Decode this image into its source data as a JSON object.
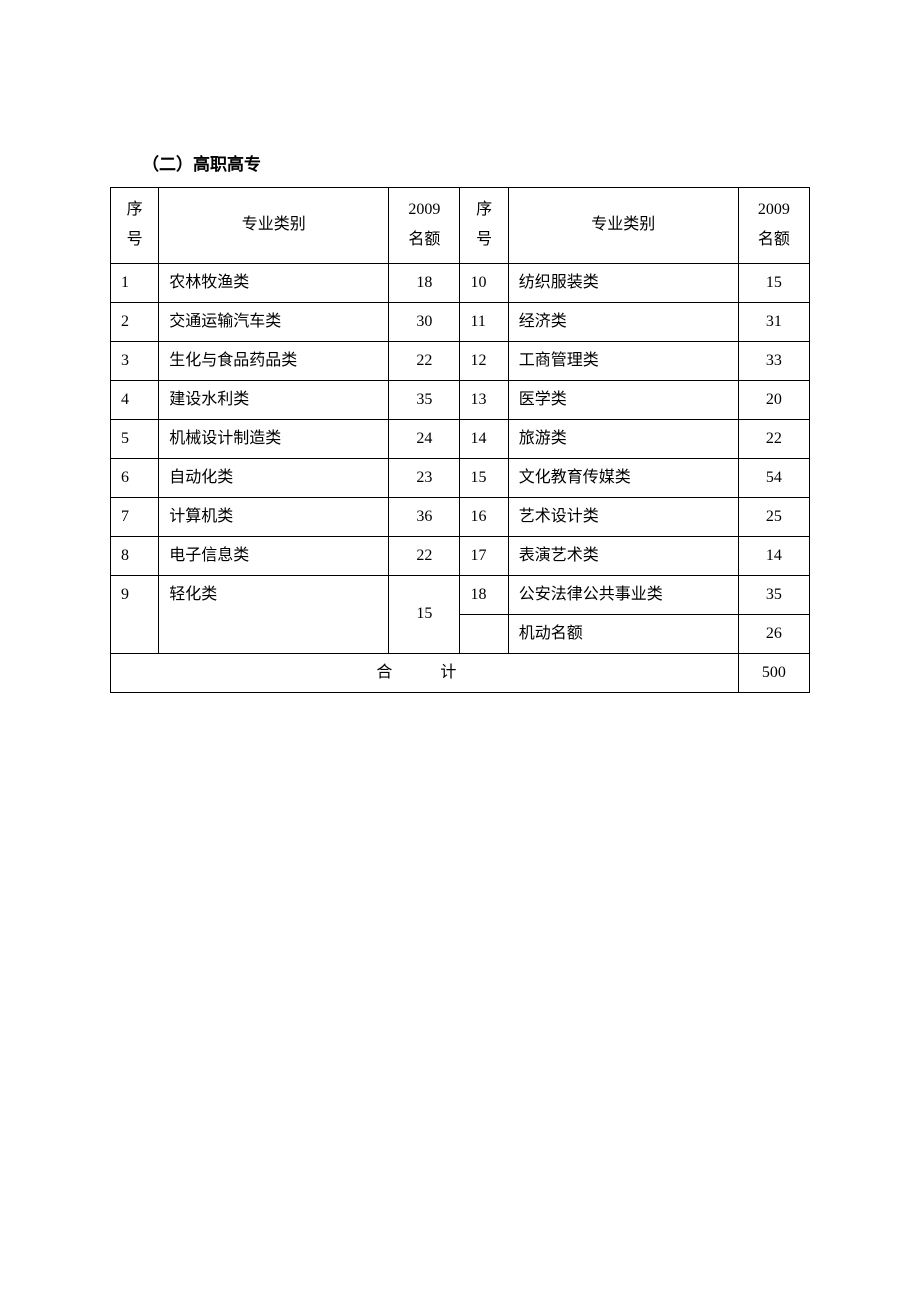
{
  "title": "（二）高职高专",
  "headers": {
    "seq": "序号",
    "major": "专业类别",
    "quota": "2009名额",
    "seq2": "序号",
    "major2": "专业类别",
    "quota2": "2009名额",
    "seq_line1": "序",
    "seq_line2": "号",
    "quota_line1": "2009",
    "quota_line2": "名额"
  },
  "rows": [
    {
      "seq": "1",
      "major": "农林牧渔类",
      "quota": "18",
      "seq2": "10",
      "major2": "纺织服装类",
      "quota2": "15"
    },
    {
      "seq": "2",
      "major": "交通运输汽车类",
      "quota": "30",
      "seq2": "11",
      "major2": "经济类",
      "quota2": "31"
    },
    {
      "seq": "3",
      "major": "生化与食品药品类",
      "quota": "22",
      "seq2": "12",
      "major2": "工商管理类",
      "quota2": "33"
    },
    {
      "seq": "4",
      "major": "建设水利类",
      "quota": "35",
      "seq2": "13",
      "major2": "医学类",
      "quota2": "20"
    },
    {
      "seq": "5",
      "major": "机械设计制造类",
      "quota": "24",
      "seq2": "14",
      "major2": "旅游类",
      "quota2": "22"
    },
    {
      "seq": "6",
      "major": "自动化类",
      "quota": "23",
      "seq2": "15",
      "major2": "文化教育传媒类",
      "quota2": "54"
    },
    {
      "seq": "7",
      "major": "计算机类",
      "quota": "36",
      "seq2": "16",
      "major2": "艺术设计类",
      "quota2": "25"
    },
    {
      "seq": "8",
      "major": "电子信息类",
      "quota": "22",
      "seq2": "17",
      "major2": "表演艺术类",
      "quota2": "14"
    }
  ],
  "row9": {
    "seq": "9",
    "major": "轻化类",
    "quota": "15",
    "seq2": "18",
    "major2": "公安法律公共事业类",
    "quota2": "35"
  },
  "row10": {
    "major2": "机动名额",
    "quota2": "26"
  },
  "total": {
    "label": "合　计",
    "value": "500"
  },
  "style": {
    "border_color": "#000000",
    "background_color": "#ffffff",
    "font_family": "SimSun",
    "title_fontsize": 17,
    "cell_fontsize": 16
  }
}
